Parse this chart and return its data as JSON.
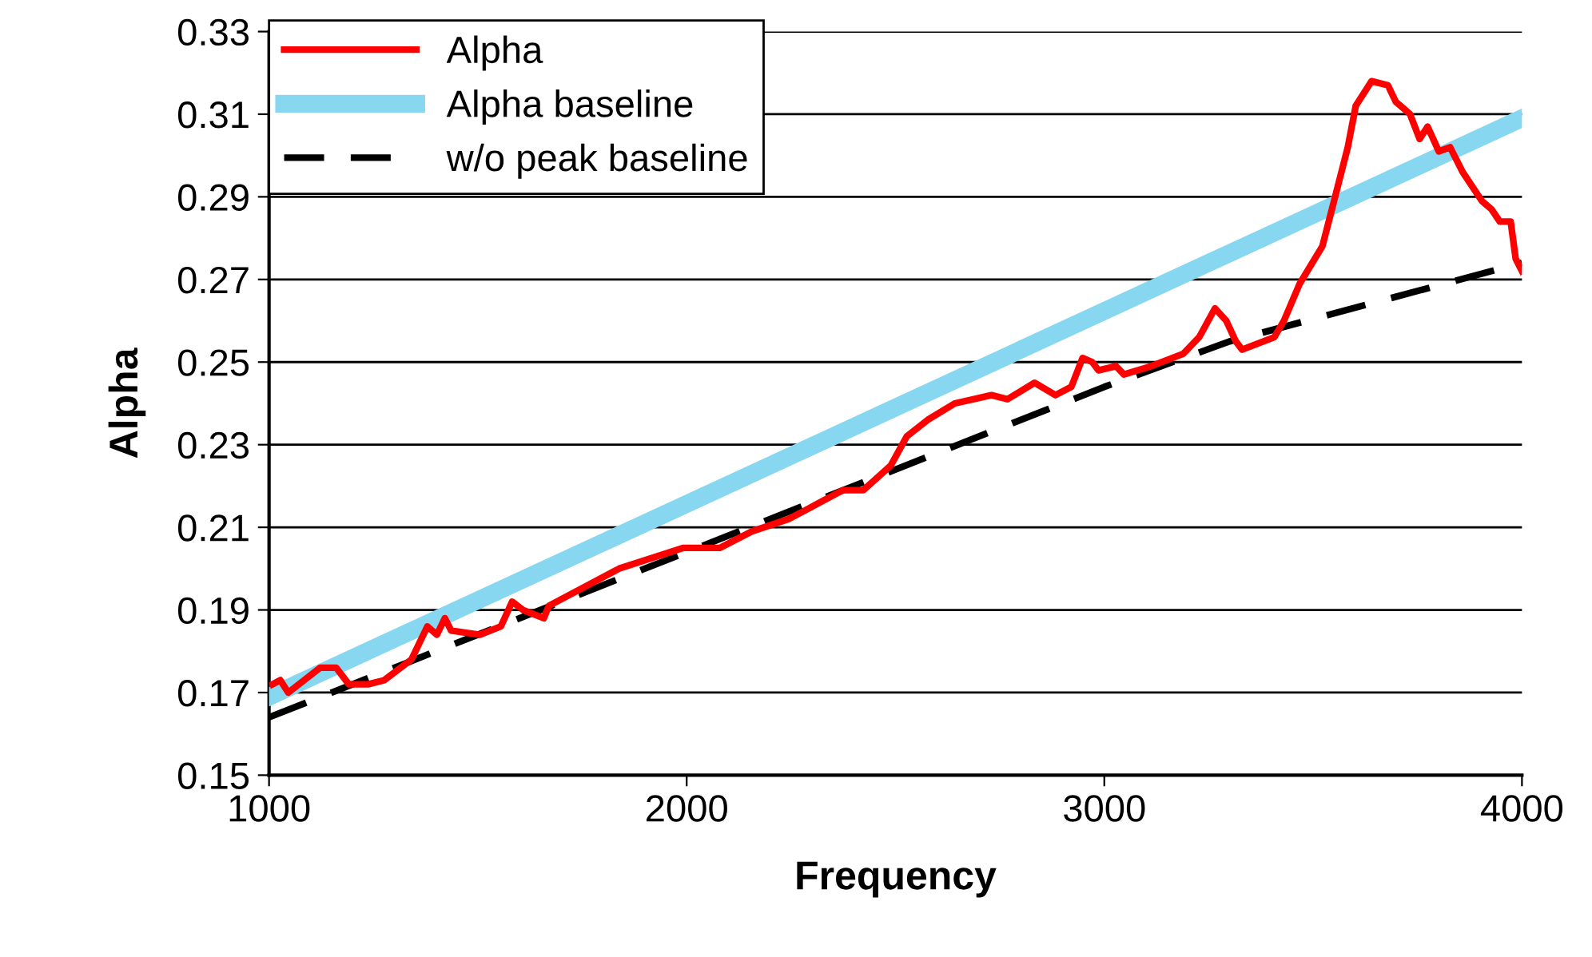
{
  "chart_data": {
    "type": "line",
    "xlabel": "Frequency",
    "ylabel": "Alpha",
    "xlim": [
      1000,
      4000
    ],
    "xticks": [
      1000,
      2000,
      3000,
      4000
    ],
    "ylim": [
      0.15,
      0.33
    ],
    "yticks": [
      0.15,
      0.17,
      0.19,
      0.21,
      0.23,
      0.25,
      0.27,
      0.29,
      0.31,
      0.33
    ],
    "grid": "y",
    "legend": "top left",
    "marker": "none",
    "series": [
      {
        "name": "Alpha",
        "color": "#ff0000",
        "line_style": "solid",
        "x": [
          1008,
          1027,
          1046,
          1122,
          1161,
          1191,
          1237,
          1276,
          1341,
          1379,
          1402,
          1421,
          1436,
          1505,
          1555,
          1582,
          1608,
          1658,
          1670,
          1838,
          1991,
          2079,
          2156,
          2244,
          2282,
          2374,
          2423,
          2489,
          2527,
          2577,
          2642,
          2730,
          2768,
          2833,
          2883,
          2921,
          2948,
          2971,
          2986,
          3028,
          3047,
          3112,
          3189,
          3227,
          3265,
          3292,
          3315,
          3330,
          3407,
          3430,
          3468,
          3522,
          3545,
          3583,
          3602,
          3640,
          3679,
          3698,
          3732,
          3755,
          3774,
          3801,
          3828,
          3858,
          3904,
          3927,
          3947,
          3973,
          3985,
          4000
        ],
        "values": [
          0.172,
          0.173,
          0.17,
          0.176,
          0.176,
          0.172,
          0.172,
          0.173,
          0.178,
          0.186,
          0.184,
          0.188,
          0.185,
          0.184,
          0.186,
          0.192,
          0.19,
          0.188,
          0.191,
          0.2,
          0.205,
          0.205,
          0.209,
          0.212,
          0.214,
          0.219,
          0.219,
          0.225,
          0.232,
          0.236,
          0.24,
          0.242,
          0.241,
          0.245,
          0.242,
          0.244,
          0.251,
          0.25,
          0.248,
          0.249,
          0.247,
          0.249,
          0.252,
          0.256,
          0.263,
          0.26,
          0.255,
          0.253,
          0.256,
          0.26,
          0.269,
          0.278,
          0.287,
          0.302,
          0.312,
          0.318,
          0.317,
          0.313,
          0.31,
          0.304,
          0.307,
          0.301,
          0.302,
          0.296,
          0.289,
          0.287,
          0.284,
          0.284,
          0.275,
          0.272
        ]
      },
      {
        "name": "Alpha baseline",
        "color": "#87d7f0",
        "line_style": "solid",
        "x": [
          1000,
          4000
        ],
        "values": [
          0.169,
          0.309
        ]
      },
      {
        "name": "w/o peak baseline",
        "color": "#000000",
        "line_style": "dashed",
        "x": [
          1000,
          2000,
          3000,
          3300,
          4000
        ],
        "values": [
          0.164,
          0.204,
          0.244,
          0.255,
          0.274
        ]
      }
    ]
  }
}
